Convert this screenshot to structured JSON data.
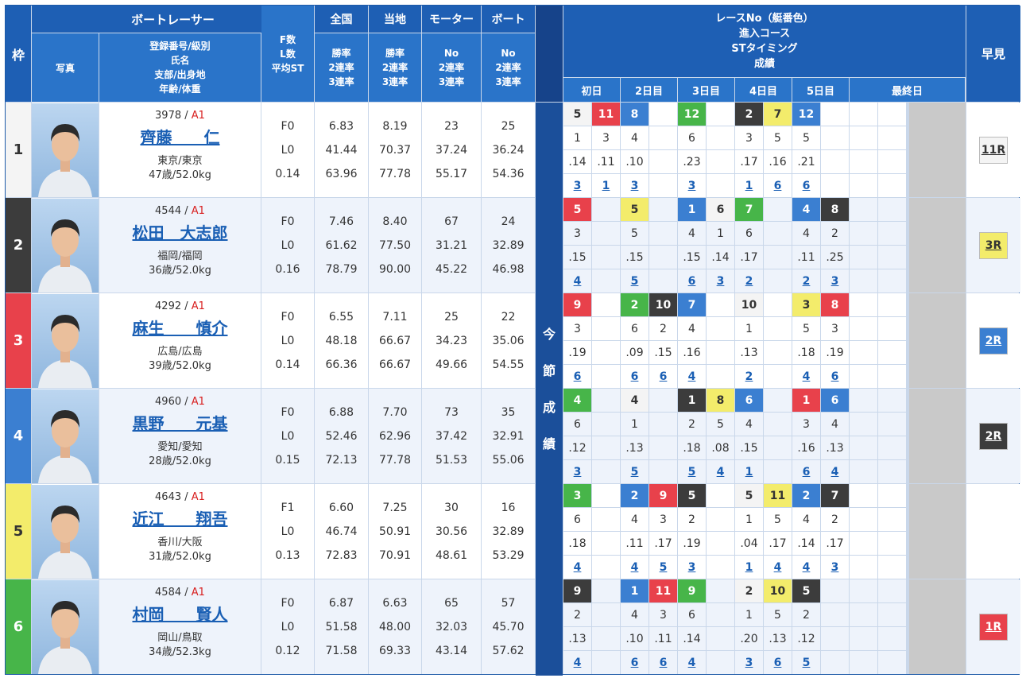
{
  "header": {
    "waku": "枠",
    "racer_group": "ボートレーサー",
    "photo": "写真",
    "info_lines": [
      "登録番号/級別",
      "氏名",
      "支部/出身地",
      "年齢/体重"
    ],
    "f_lines": [
      "F数",
      "L数",
      "平均ST"
    ],
    "zenkoku": "全国",
    "touchi": "当地",
    "motor": "モーター",
    "boat": "ボート",
    "rate_lines": [
      "勝率",
      "2連率",
      "3連率"
    ],
    "no_lines": [
      "No",
      "2連率",
      "3連率"
    ],
    "series_lines": [
      "レースNo（艇番色）",
      "進入コース",
      "STタイミング",
      "成績"
    ],
    "days": [
      "初日",
      "2日目",
      "3日目",
      "4日目",
      "5日目",
      "最終日"
    ],
    "hayami": "早見",
    "side_label": [
      "今",
      "節",
      "成",
      "績"
    ]
  },
  "colors": {
    "waku": [
      "#f4f4f4",
      "#3c3c3c",
      "#e8414b",
      "#3b7fd1",
      "#f3ec6b",
      "#47b549"
    ],
    "waku_text": [
      "#333333",
      "#ffffff",
      "#ffffff",
      "#ffffff",
      "#333333",
      "#ffffff"
    ]
  },
  "racers": [
    {
      "waku": "1",
      "reg": "3978",
      "grade": "A1",
      "name": "齊藤　　仁",
      "branch": "東京/東京",
      "age_weight": "47歳/52.0kg",
      "f": "F0",
      "l": "L0",
      "avg_st": "0.14",
      "z_win": "6.83",
      "z_2": "41.44",
      "z_3": "63.96",
      "t_win": "8.19",
      "t_2": "70.37",
      "t_3": "77.78",
      "m_no": "23",
      "m_2": "37.24",
      "m_3": "55.17",
      "b_no": "25",
      "b_2": "36.24",
      "b_3": "54.36",
      "hayami": "11R",
      "hayami_color": 1,
      "races": [
        {
          "slot": 0,
          "no": "5",
          "color": 1,
          "course": "1",
          "st": ".14",
          "rank": "3"
        },
        {
          "slot": 1,
          "no": "11",
          "color": 3,
          "course": "3",
          "st": ".11",
          "rank": "1"
        },
        {
          "slot": 2,
          "no": "8",
          "color": 4,
          "course": "4",
          "st": ".10",
          "rank": "3"
        },
        {
          "slot": 4,
          "no": "12",
          "color": 6,
          "course": "6",
          "st": ".23",
          "rank": "3"
        },
        {
          "slot": 6,
          "no": "2",
          "color": 2,
          "course": "3",
          "st": ".17",
          "rank": "1"
        },
        {
          "slot": 7,
          "no": "7",
          "color": 5,
          "course": "5",
          "st": ".16",
          "rank": "6"
        },
        {
          "slot": 8,
          "no": "12",
          "color": 4,
          "course": "5",
          "st": ".21",
          "rank": "6"
        }
      ]
    },
    {
      "waku": "2",
      "reg": "4544",
      "grade": "A1",
      "name": "松田　大志郎",
      "branch": "福岡/福岡",
      "age_weight": "36歳/52.0kg",
      "f": "F0",
      "l": "L0",
      "avg_st": "0.16",
      "z_win": "7.46",
      "z_2": "61.62",
      "z_3": "78.79",
      "t_win": "8.40",
      "t_2": "77.50",
      "t_3": "90.00",
      "m_no": "67",
      "m_2": "31.21",
      "m_3": "45.22",
      "b_no": "24",
      "b_2": "32.89",
      "b_3": "46.98",
      "hayami": "3R",
      "hayami_color": 5,
      "races": [
        {
          "slot": 0,
          "no": "5",
          "color": 3,
          "course": "3",
          "st": ".15",
          "rank": "4"
        },
        {
          "slot": 2,
          "no": "5",
          "color": 5,
          "course": "5",
          "st": ".15",
          "rank": "5"
        },
        {
          "slot": 4,
          "no": "1",
          "color": 4,
          "course": "4",
          "st": ".15",
          "rank": "6"
        },
        {
          "slot": 5,
          "no": "6",
          "color": 1,
          "course": "1",
          "st": ".14",
          "rank": "3"
        },
        {
          "slot": 6,
          "no": "7",
          "color": 6,
          "course": "6",
          "st": ".17",
          "rank": "2"
        },
        {
          "slot": 8,
          "no": "4",
          "color": 4,
          "course": "4",
          "st": ".11",
          "rank": "2"
        },
        {
          "slot": 9,
          "no": "8",
          "color": 2,
          "course": "2",
          "st": ".25",
          "rank": "3"
        }
      ]
    },
    {
      "waku": "3",
      "reg": "4292",
      "grade": "A1",
      "name": "麻生　　慎介",
      "branch": "広島/広島",
      "age_weight": "39歳/52.0kg",
      "f": "F0",
      "l": "L0",
      "avg_st": "0.14",
      "z_win": "6.55",
      "z_2": "48.18",
      "z_3": "66.36",
      "t_win": "7.11",
      "t_2": "66.67",
      "t_3": "66.67",
      "m_no": "25",
      "m_2": "34.23",
      "m_3": "49.66",
      "b_no": "22",
      "b_2": "35.06",
      "b_3": "54.55",
      "hayami": "2R",
      "hayami_color": 4,
      "races": [
        {
          "slot": 0,
          "no": "9",
          "color": 3,
          "course": "3",
          "st": ".19",
          "rank": "6"
        },
        {
          "slot": 2,
          "no": "2",
          "color": 6,
          "course": "6",
          "st": ".09",
          "rank": "6"
        },
        {
          "slot": 3,
          "no": "10",
          "color": 2,
          "course": "2",
          "st": ".15",
          "rank": "6"
        },
        {
          "slot": 4,
          "no": "7",
          "color": 4,
          "course": "4",
          "st": ".16",
          "rank": "4"
        },
        {
          "slot": 6,
          "no": "10",
          "color": 1,
          "course": "1",
          "st": ".13",
          "rank": "2"
        },
        {
          "slot": 8,
          "no": "3",
          "color": 5,
          "course": "5",
          "st": ".18",
          "rank": "4"
        },
        {
          "slot": 9,
          "no": "8",
          "color": 3,
          "course": "3",
          "st": ".19",
          "rank": "6"
        }
      ]
    },
    {
      "waku": "4",
      "reg": "4960",
      "grade": "A1",
      "name": "黒野　　元基",
      "branch": "愛知/愛知",
      "age_weight": "28歳/52.0kg",
      "f": "F0",
      "l": "L0",
      "avg_st": "0.15",
      "z_win": "6.88",
      "z_2": "52.46",
      "z_3": "72.13",
      "t_win": "7.70",
      "t_2": "62.96",
      "t_3": "77.78",
      "m_no": "73",
      "m_2": "37.42",
      "m_3": "51.53",
      "b_no": "35",
      "b_2": "32.91",
      "b_3": "55.06",
      "hayami": "2R",
      "hayami_color": 2,
      "races": [
        {
          "slot": 0,
          "no": "4",
          "color": 6,
          "course": "6",
          "st": ".12",
          "rank": "3"
        },
        {
          "slot": 2,
          "no": "4",
          "color": 1,
          "course": "1",
          "st": ".13",
          "rank": "5"
        },
        {
          "slot": 4,
          "no": "1",
          "color": 2,
          "course": "2",
          "st": ".18",
          "rank": "5"
        },
        {
          "slot": 5,
          "no": "8",
          "color": 5,
          "course": "5",
          "st": ".08",
          "rank": "4"
        },
        {
          "slot": 6,
          "no": "6",
          "color": 4,
          "course": "4",
          "st": ".15",
          "rank": "1"
        },
        {
          "slot": 8,
          "no": "1",
          "color": 3,
          "course": "3",
          "st": ".16",
          "rank": "6"
        },
        {
          "slot": 9,
          "no": "6",
          "color": 4,
          "course": "4",
          "st": ".13",
          "rank": "4"
        }
      ]
    },
    {
      "waku": "5",
      "reg": "4643",
      "grade": "A1",
      "name": "近江　　翔吾",
      "branch": "香川/大阪",
      "age_weight": "31歳/52.0kg",
      "f": "F1",
      "l": "L0",
      "avg_st": "0.13",
      "z_win": "6.60",
      "z_2": "46.74",
      "z_3": "72.83",
      "t_win": "7.25",
      "t_2": "50.91",
      "t_3": "70.91",
      "m_no": "30",
      "m_2": "30.56",
      "m_3": "48.61",
      "b_no": "16",
      "b_2": "32.89",
      "b_3": "53.29",
      "hayami": "",
      "hayami_color": 0,
      "races": [
        {
          "slot": 0,
          "no": "3",
          "color": 6,
          "course": "6",
          "st": ".18",
          "rank": "4"
        },
        {
          "slot": 2,
          "no": "2",
          "color": 4,
          "course": "4",
          "st": ".11",
          "rank": "4"
        },
        {
          "slot": 3,
          "no": "9",
          "color": 3,
          "course": "3",
          "st": ".17",
          "rank": "5"
        },
        {
          "slot": 4,
          "no": "5",
          "color": 2,
          "course": "2",
          "st": ".19",
          "rank": "3"
        },
        {
          "slot": 6,
          "no": "5",
          "color": 1,
          "course": "1",
          "st": ".04",
          "rank": "1"
        },
        {
          "slot": 7,
          "no": "11",
          "color": 5,
          "course": "5",
          "st": ".17",
          "rank": "4"
        },
        {
          "slot": 8,
          "no": "2",
          "color": 4,
          "course": "4",
          "st": ".14",
          "rank": "4"
        },
        {
          "slot": 9,
          "no": "7",
          "color": 2,
          "course": "2",
          "st": ".17",
          "rank": "3"
        }
      ]
    },
    {
      "waku": "6",
      "reg": "4584",
      "grade": "A1",
      "name": "村岡　　賢人",
      "branch": "岡山/鳥取",
      "age_weight": "34歳/52.3kg",
      "f": "F0",
      "l": "L0",
      "avg_st": "0.12",
      "z_win": "6.87",
      "z_2": "51.58",
      "z_3": "71.58",
      "t_win": "6.63",
      "t_2": "48.00",
      "t_3": "69.33",
      "m_no": "65",
      "m_2": "32.03",
      "m_3": "43.14",
      "b_no": "57",
      "b_2": "45.70",
      "b_3": "57.62",
      "hayami": "1R",
      "hayami_color": 3,
      "races": [
        {
          "slot": 0,
          "no": "9",
          "color": 2,
          "course": "2",
          "st": ".13",
          "rank": "4"
        },
        {
          "slot": 2,
          "no": "1",
          "color": 4,
          "course": "4",
          "st": ".10",
          "rank": "6"
        },
        {
          "slot": 3,
          "no": "11",
          "color": 3,
          "course": "3",
          "st": ".11",
          "rank": "6"
        },
        {
          "slot": 4,
          "no": "9",
          "color": 6,
          "course": "6",
          "st": ".14",
          "rank": "4"
        },
        {
          "slot": 6,
          "no": "2",
          "color": 1,
          "course": "1",
          "st": ".20",
          "rank": "3"
        },
        {
          "slot": 7,
          "no": "10",
          "color": 5,
          "course": "5",
          "st": ".13",
          "rank": "6"
        },
        {
          "slot": 8,
          "no": "5",
          "color": 2,
          "course": "2",
          "st": ".12",
          "rank": "5"
        }
      ]
    }
  ]
}
